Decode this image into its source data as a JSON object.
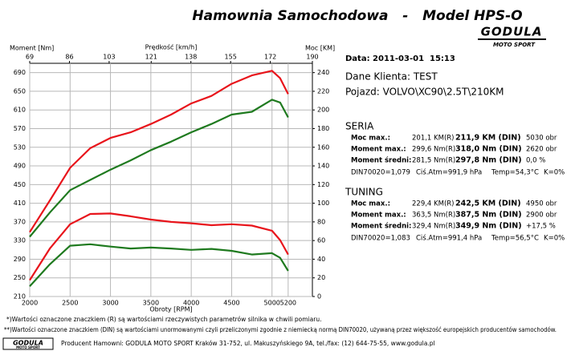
{
  "chart_data": {
    "type": "line",
    "title": "Hamownia Samochodowa   -   Model HPS-O",
    "y_label": "Moment [Nm]",
    "x2_label": "Prędkość [km/h]",
    "y2_label": "Moc [KM]",
    "x_label": "Obroty [RPM]",
    "x": [
      2000,
      2250,
      2500,
      2750,
      3000,
      3250,
      3500,
      3750,
      4000,
      4250,
      4500,
      4750,
      5000,
      5100,
      5200
    ],
    "xlim": [
      2000,
      5500
    ],
    "xticks": [
      2000,
      2500,
      3000,
      3500,
      4000,
      4500,
      5000,
      5200
    ],
    "x2lim": [
      69,
      190
    ],
    "x2ticks": [
      69,
      86,
      103,
      121,
      138,
      155,
      172,
      190
    ],
    "ylim": [
      210,
      710
    ],
    "yticks": [
      210,
      250,
      290,
      330,
      370,
      410,
      450,
      490,
      530,
      570,
      610,
      650,
      690
    ],
    "y2lim": [
      0,
      250
    ],
    "y2ticks": [
      0,
      20,
      40,
      60,
      80,
      100,
      120,
      140,
      160,
      180,
      200,
      220,
      240
    ],
    "grid": true,
    "series": [
      {
        "color": "#e8141b",
        "axis": "y2",
        "values": [
          69,
          103,
          138,
          159,
          170,
          176,
          185,
          195,
          207,
          215,
          228,
          237,
          242,
          234,
          217
        ]
      },
      {
        "color": "#1f7a1f",
        "axis": "y2",
        "values": [
          64,
          90,
          114,
          125,
          136,
          146,
          157,
          166,
          176,
          185,
          195,
          198,
          211,
          208,
          192
        ]
      },
      {
        "color": "#e8141b",
        "values": [
          245,
          313,
          365,
          387,
          388,
          382,
          375,
          370,
          367,
          363,
          365,
          362,
          351,
          331,
          300
        ]
      },
      {
        "color": "#1f7a1f",
        "values": [
          232,
          279,
          319,
          322,
          317,
          313,
          315,
          313,
          310,
          312,
          308,
          300,
          303,
          293,
          265
        ]
      }
    ]
  },
  "logo": {
    "name": "GODULA",
    "sub": "MOTO SPORT"
  },
  "info": {
    "date": "Data: 2011-03-01  15:13",
    "client": "Dane Klienta: TEST",
    "vehicle": "Pojazd: VOLVO\\XC90\\2.5T\\210KM",
    "sections": [
      {
        "title": "SERIA",
        "color": "#1f7a1f",
        "rows": [
          [
            "Moc max.:",
            "201,1 KM(R)",
            "211,9 KM (DIN)",
            "5030 obr"
          ],
          [
            "Moment max.:",
            "299,6 Nm(R)",
            "318,0 Nm (DIN)",
            "2620 obr"
          ],
          [
            "Moment średni:",
            "281,5 Nm(R)",
            "297,8 Nm (DIN)",
            "0,0 %"
          ]
        ],
        "din": [
          "DIN70020=1,079",
          "Ciś.Atm=991,9 hPa",
          "Temp=54,3°C",
          "K=0%"
        ]
      },
      {
        "title": "TUNING",
        "color": "#e8141b",
        "rows": [
          [
            "Moc max.:",
            "229,4 KM(R)",
            "242,5 KM (DIN)",
            "4950 obr"
          ],
          [
            "Moment max.:",
            "363,5 Nm(R)",
            "387,5 Nm (DIN)",
            "2900 obr"
          ],
          [
            "Moment średni:",
            "329,4 Nm(R)",
            "349,9 Nm (DIN)",
            "+17,5 %"
          ]
        ],
        "din": [
          "DIN70020=1,083",
          "Ciś.Atm=991,4 hPa",
          "Temp=56,5°C",
          "K=0%"
        ]
      }
    ]
  },
  "footer": {
    "note1": "*)Wartości oznaczone znaczkiem (R) są wartościami rzeczywistych parametrów silnika w chwili pomiaru.",
    "note2": "**)Wartości oznaczone znaczkiem (DIN) są wartościami unormowanymi czyli przeliczonymi zgodnie z niemiecką normą DIN70020, używaną przez większość europejskich producentów samochodów.",
    "producer": "Producent Hamowni: GODULA MOTO SPORT Kraków 31-752, ul. Makuszyńskiego 9A, tel./fax: (12) 644-75-55, www.godula.pl"
  }
}
